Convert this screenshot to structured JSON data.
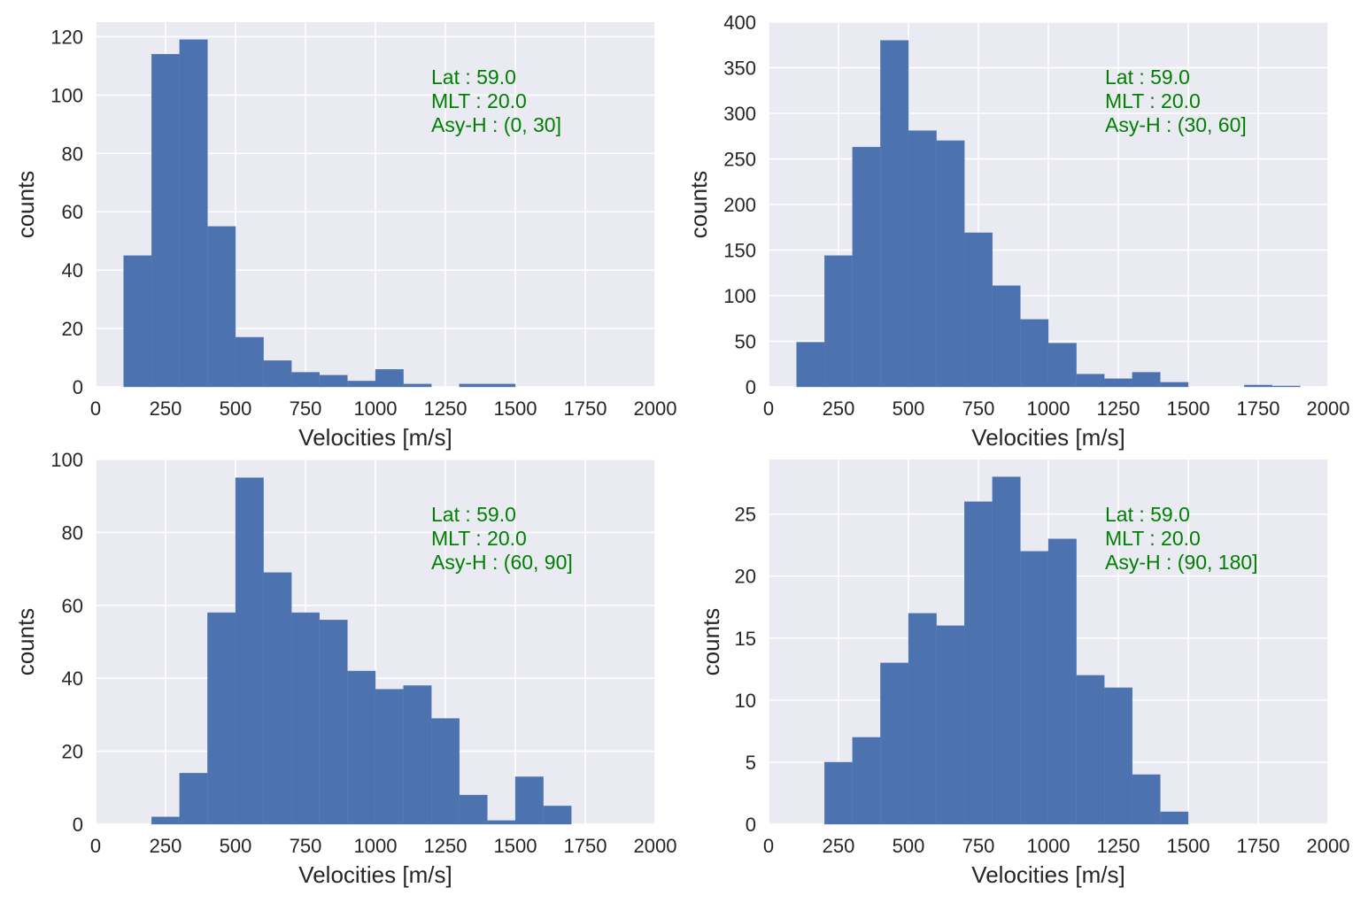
{
  "colors": {
    "bar": "#4c72b0",
    "background": "#eaeaf2",
    "grid": "#ffffff",
    "annotation": "#008000"
  },
  "chart_data": [
    {
      "type": "bar",
      "xlabel": "Velocities [m/s]",
      "ylabel": "counts",
      "xlim": [
        0,
        2000
      ],
      "ylim": [
        0,
        125
      ],
      "xticks": [
        0,
        250,
        500,
        750,
        1000,
        1250,
        1500,
        1750,
        2000
      ],
      "yticks": [
        0,
        20,
        40,
        60,
        80,
        100,
        120
      ],
      "bin_width": 100,
      "bins": [
        {
          "start": 100,
          "count": 45
        },
        {
          "start": 200,
          "count": 114
        },
        {
          "start": 300,
          "count": 119
        },
        {
          "start": 400,
          "count": 55
        },
        {
          "start": 500,
          "count": 17
        },
        {
          "start": 600,
          "count": 9
        },
        {
          "start": 700,
          "count": 5
        },
        {
          "start": 800,
          "count": 4
        },
        {
          "start": 900,
          "count": 2
        },
        {
          "start": 1000,
          "count": 6
        },
        {
          "start": 1100,
          "count": 1
        },
        {
          "start": 1200,
          "count": 0
        },
        {
          "start": 1300,
          "count": 1
        },
        {
          "start": 1400,
          "count": 1
        }
      ],
      "annotation": [
        "Lat : 59.0",
        "MLT : 20.0",
        "Asy-H : (0, 30]"
      ]
    },
    {
      "type": "bar",
      "xlabel": "Velocities [m/s]",
      "ylabel": "counts",
      "xlim": [
        0,
        2000
      ],
      "ylim": [
        0,
        400
      ],
      "xticks": [
        0,
        250,
        500,
        750,
        1000,
        1250,
        1500,
        1750,
        2000
      ],
      "yticks": [
        0,
        50,
        100,
        150,
        200,
        250,
        300,
        350,
        400
      ],
      "bin_width": 100,
      "bins": [
        {
          "start": 100,
          "count": 49
        },
        {
          "start": 200,
          "count": 144
        },
        {
          "start": 300,
          "count": 263
        },
        {
          "start": 400,
          "count": 380
        },
        {
          "start": 500,
          "count": 281
        },
        {
          "start": 600,
          "count": 270
        },
        {
          "start": 700,
          "count": 169
        },
        {
          "start": 800,
          "count": 111
        },
        {
          "start": 900,
          "count": 74
        },
        {
          "start": 1000,
          "count": 48
        },
        {
          "start": 1100,
          "count": 14
        },
        {
          "start": 1200,
          "count": 9
        },
        {
          "start": 1300,
          "count": 16
        },
        {
          "start": 1400,
          "count": 5
        },
        {
          "start": 1500,
          "count": 0
        },
        {
          "start": 1600,
          "count": 0
        },
        {
          "start": 1700,
          "count": 2
        },
        {
          "start": 1800,
          "count": 1
        }
      ],
      "annotation": [
        "Lat : 59.0",
        "MLT : 20.0",
        "Asy-H : (30, 60]"
      ]
    },
    {
      "type": "bar",
      "xlabel": "Velocities [m/s]",
      "ylabel": "counts",
      "xlim": [
        0,
        2000
      ],
      "ylim": [
        0,
        100
      ],
      "xticks": [
        0,
        250,
        500,
        750,
        1000,
        1250,
        1500,
        1750,
        2000
      ],
      "yticks": [
        0,
        20,
        40,
        60,
        80,
        100
      ],
      "bin_width": 100,
      "bins": [
        {
          "start": 200,
          "count": 2
        },
        {
          "start": 300,
          "count": 14
        },
        {
          "start": 400,
          "count": 58
        },
        {
          "start": 500,
          "count": 95
        },
        {
          "start": 600,
          "count": 69
        },
        {
          "start": 700,
          "count": 58
        },
        {
          "start": 800,
          "count": 56
        },
        {
          "start": 900,
          "count": 42
        },
        {
          "start": 1000,
          "count": 37
        },
        {
          "start": 1100,
          "count": 38
        },
        {
          "start": 1200,
          "count": 29
        },
        {
          "start": 1300,
          "count": 8
        },
        {
          "start": 1400,
          "count": 1
        },
        {
          "start": 1500,
          "count": 13
        },
        {
          "start": 1600,
          "count": 5
        }
      ],
      "annotation": [
        "Lat : 59.0",
        "MLT : 20.0",
        "Asy-H : (60, 90]"
      ]
    },
    {
      "type": "bar",
      "xlabel": "Velocities [m/s]",
      "ylabel": "counts",
      "xlim": [
        0,
        2000
      ],
      "ylim": [
        0,
        29.4
      ],
      "xticks": [
        0,
        250,
        500,
        750,
        1000,
        1250,
        1500,
        1750,
        2000
      ],
      "yticks": [
        0,
        5,
        10,
        15,
        20,
        25
      ],
      "bin_width": 100,
      "bins": [
        {
          "start": 200,
          "count": 5
        },
        {
          "start": 300,
          "count": 7
        },
        {
          "start": 400,
          "count": 13
        },
        {
          "start": 500,
          "count": 17
        },
        {
          "start": 600,
          "count": 16
        },
        {
          "start": 700,
          "count": 26
        },
        {
          "start": 800,
          "count": 28
        },
        {
          "start": 900,
          "count": 22
        },
        {
          "start": 1000,
          "count": 23
        },
        {
          "start": 1100,
          "count": 12
        },
        {
          "start": 1200,
          "count": 11
        },
        {
          "start": 1300,
          "count": 4
        },
        {
          "start": 1400,
          "count": 1
        }
      ],
      "annotation": [
        "Lat : 59.0",
        "MLT : 20.0",
        "Asy-H : (90, 180]"
      ]
    }
  ]
}
